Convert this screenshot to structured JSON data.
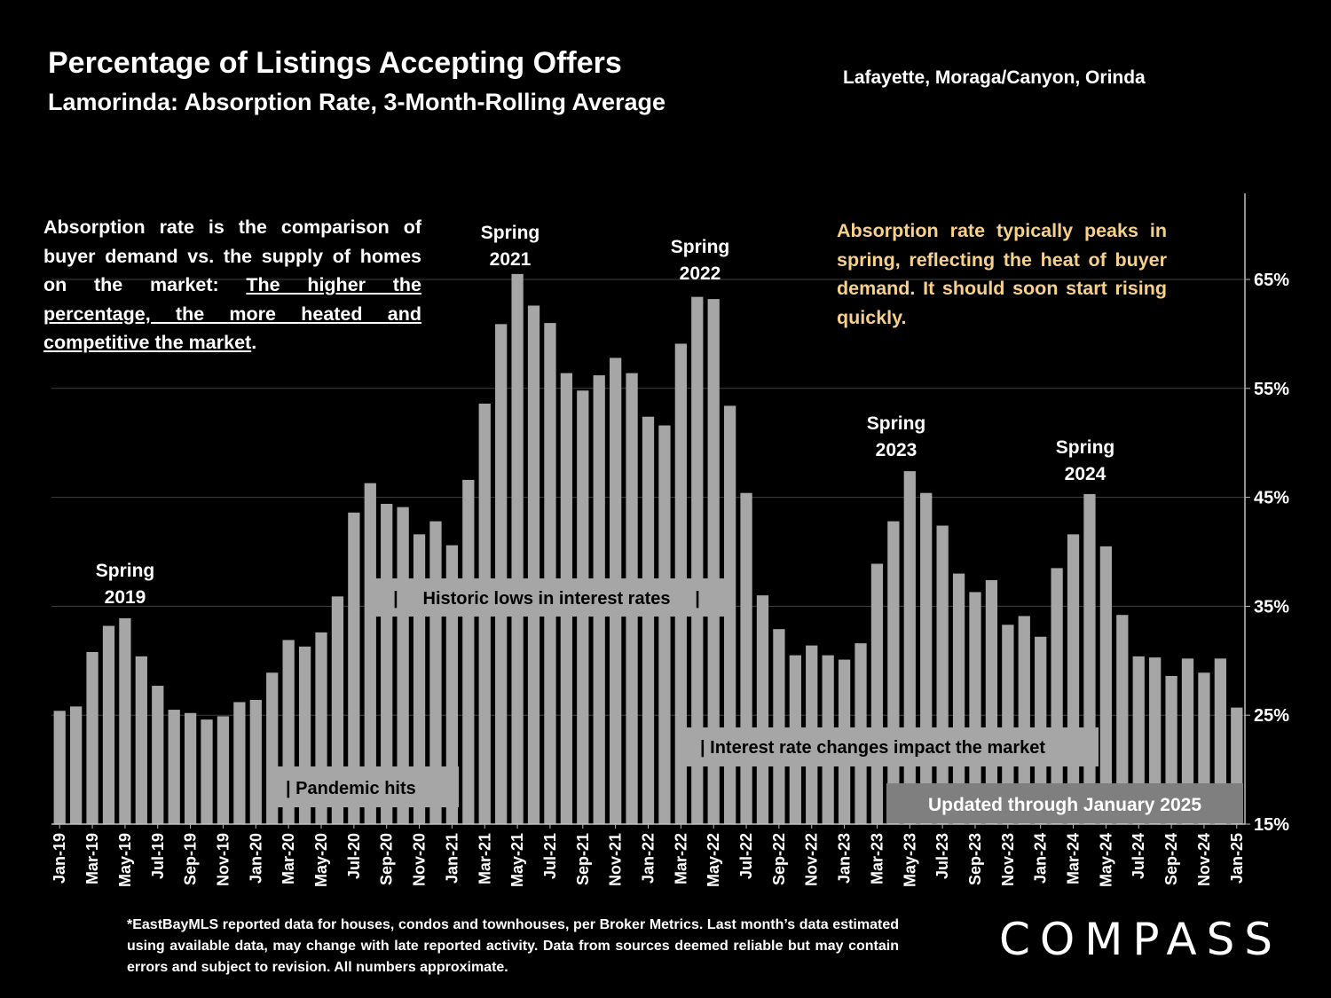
{
  "header": {
    "title": "Percentage of Listings Accepting Offers",
    "subtitle": "Lamorinda:  Absorption Rate, 3-Month-Rolling Average",
    "region": "Lafayette, Moraga/Canyon, Orinda"
  },
  "notes": {
    "left_plain": "Absorption rate is the comparison of buyer demand vs. the supply of homes on the market: ",
    "left_underlined_1": "The higher the percentage, the more heated and",
    "left_underlined_2": "competitive the market",
    "left_end": ".",
    "right": "Absorption rate typically peaks in spring, reflecting the heat of buyer demand. It should soon start rising quickly."
  },
  "footnote": "*EastBayMLS reported data for houses, condos and townhouses, per Broker Metrics. Last month’s data estimated using available data, may change with late reported activity. Data from sources deemed reliable but may contain errors and subject to revision. All numbers approximate.",
  "logo": "COMPASS",
  "colors": {
    "background": "#000000",
    "bar": "#a6a6a6",
    "note_highlight": "#f7d08a",
    "label_box": "#a6a6a6",
    "updated_box": "#7f7f7f"
  },
  "chart_data": {
    "type": "bar",
    "categories": [
      "Jan-19",
      "Feb-19",
      "Mar-19",
      "Apr-19",
      "May-19",
      "Jun-19",
      "Jul-19",
      "Aug-19",
      "Sep-19",
      "Oct-19",
      "Nov-19",
      "Dec-19",
      "Jan-20",
      "Feb-20",
      "Mar-20",
      "Apr-20",
      "May-20",
      "Jun-20",
      "Jul-20",
      "Aug-20",
      "Sep-20",
      "Oct-20",
      "Nov-20",
      "Dec-20",
      "Jan-21",
      "Feb-21",
      "Mar-21",
      "Apr-21",
      "May-21",
      "Jun-21",
      "Jul-21",
      "Aug-21",
      "Sep-21",
      "Oct-21",
      "Nov-21",
      "Dec-21",
      "Jan-22",
      "Feb-22",
      "Mar-22",
      "Apr-22",
      "May-22",
      "Jun-22",
      "Jul-22",
      "Aug-22",
      "Sep-22",
      "Oct-22",
      "Nov-22",
      "Dec-22",
      "Jan-23",
      "Feb-23",
      "Mar-23",
      "Apr-23",
      "May-23",
      "Jun-23",
      "Jul-23",
      "Aug-23",
      "Sep-23",
      "Oct-23",
      "Nov-23",
      "Dec-23",
      "Jan-24",
      "Feb-24",
      "Mar-24",
      "Apr-24",
      "May-24",
      "Jun-24",
      "Jul-24",
      "Aug-24",
      "Sep-24",
      "Oct-24",
      "Nov-24",
      "Dec-24",
      "Jan-25"
    ],
    "tick_labels": [
      "Jan-19",
      "Mar-19",
      "May-19",
      "Jul-19",
      "Sep-19",
      "Nov-19",
      "Jan-20",
      "Mar-20",
      "May-20",
      "Jul-20",
      "Sep-20",
      "Nov-20",
      "Jan-21",
      "Mar-21",
      "May-21",
      "Jul-21",
      "Sep-21",
      "Nov-21",
      "Jan-22",
      "Mar-22",
      "May-22",
      "Jul-22",
      "Sep-22",
      "Nov-22",
      "Jan-23",
      "Mar-23",
      "May-23",
      "Jul-23",
      "Sep-23",
      "Nov-23",
      "Jan-24",
      "Mar-24",
      "May-24",
      "Jul-24",
      "Sep-24",
      "Nov-24",
      "Jan-25"
    ],
    "values": [
      25.4,
      25.8,
      30.8,
      33.2,
      33.9,
      30.4,
      27.7,
      25.5,
      25.2,
      24.6,
      24.9,
      26.2,
      26.4,
      28.9,
      31.9,
      31.3,
      32.6,
      35.9,
      43.6,
      46.3,
      44.4,
      44.1,
      41.6,
      42.8,
      40.6,
      46.6,
      53.6,
      60.9,
      65.5,
      62.6,
      61.0,
      56.4,
      54.8,
      56.2,
      57.8,
      56.4,
      52.4,
      51.6,
      59.1,
      63.4,
      63.2,
      53.4,
      45.4,
      36.0,
      32.9,
      30.5,
      31.4,
      30.5,
      30.1,
      31.6,
      38.9,
      42.8,
      47.4,
      45.4,
      42.4,
      38.0,
      36.3,
      37.4,
      33.3,
      34.1,
      32.2,
      38.5,
      41.6,
      45.3,
      40.5,
      34.2,
      30.4,
      30.3,
      28.6,
      30.2,
      28.9,
      30.2,
      25.7
    ],
    "yticks": [
      "15%",
      "25%",
      "35%",
      "45%",
      "55%",
      "65%"
    ],
    "ylim": [
      15,
      73
    ],
    "grid": true,
    "y_axis_position": "right",
    "annotations": {
      "spring_2019": [
        "Spring",
        "2019"
      ],
      "spring_2021": [
        "Spring",
        "2021"
      ],
      "spring_2022": [
        "Spring",
        "2022"
      ],
      "spring_2023": [
        "Spring",
        "2023"
      ],
      "spring_2024": [
        "Spring",
        "2024"
      ],
      "historic_lows": "|     Historic lows in interest rates     |",
      "pandemic": "| Pandemic hits",
      "rate_changes": "| Interest rate changes impact the market",
      "updated": "Updated through January 2025"
    }
  }
}
